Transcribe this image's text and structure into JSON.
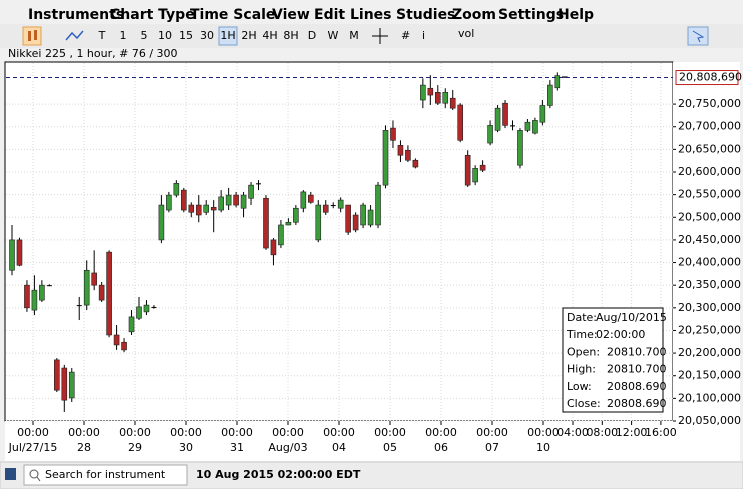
{
  "menu": [
    "Instruments",
    "Chart Type",
    "Time Scale",
    "View",
    "Edit",
    "Lines",
    "Studies",
    "Zoom",
    "Settings",
    "Help"
  ],
  "toolbar": {
    "periods": [
      "T",
      "1",
      "5",
      "10",
      "15",
      "30",
      "1H",
      "2H",
      "4H",
      "8H",
      "D",
      "W",
      "M"
    ],
    "active": "1H",
    "info": "i",
    "vol": "vol"
  },
  "info_line": "Nikkei 225 , 1 hour, # 76 / 300",
  "chart_data": {
    "type": "candlestick",
    "up_color": "#3c9c3c",
    "down_color": "#b02828",
    "ylim": [
      20050,
      20843
    ],
    "yticks": [
      {
        "value": 20050,
        "label": "20,050,000"
      },
      {
        "value": 20100,
        "label": "20,100,000"
      },
      {
        "value": 20150,
        "label": "20,150,000"
      },
      {
        "value": 20200,
        "label": "20,200,000"
      },
      {
        "value": 20250,
        "label": "20,250,000"
      },
      {
        "value": 20300,
        "label": "20,300,000"
      },
      {
        "value": 20350,
        "label": "20,350,000"
      },
      {
        "value": 20400,
        "label": "20,400,000"
      },
      {
        "value": 20450,
        "label": "20,450,000"
      },
      {
        "value": 20500,
        "label": "20,500,000"
      },
      {
        "value": 20550,
        "label": "20,550,000"
      },
      {
        "value": 20600,
        "label": "20,600,000"
      },
      {
        "value": 20650,
        "label": "20,650,000"
      },
      {
        "value": 20700,
        "label": "20,700,000"
      },
      {
        "value": 20750,
        "label": "20,750,000"
      }
    ],
    "xticks": [
      {
        "time": "00:00",
        "date": "Jul/27/15"
      },
      {
        "time": "00:00",
        "date": "28"
      },
      {
        "time": "00:00",
        "date": "29"
      },
      {
        "time": "00:00",
        "date": "30"
      },
      {
        "time": "00:00",
        "date": "31"
      },
      {
        "time": "00:00",
        "date": "Aug/03"
      },
      {
        "time": "00:00",
        "date": "04"
      },
      {
        "time": "00:00",
        "date": "05"
      },
      {
        "time": "00:00",
        "date": "06"
      },
      {
        "time": "00:00",
        "date": "07"
      },
      {
        "time": "00:00",
        "date": "10"
      },
      {
        "time": "04:00"
      },
      {
        "time": "08:00"
      },
      {
        "time": "12:00"
      },
      {
        "time": "16:00"
      }
    ],
    "current_price": {
      "value": 20808.69,
      "label": "20,808,690"
    },
    "open": [
      20383,
      20450,
      20350,
      20295,
      20317,
      20350,
      20185,
      20167,
      20101,
      20306,
      20306,
      20377,
      20350,
      20423,
      20240,
      20224,
      20247,
      20277,
      20291,
      20302,
      20450,
      20516,
      20549,
      20560,
      20527,
      20527,
      20511,
      20522,
      20516,
      20527,
      20549,
      20520,
      20542,
      20575,
      20542,
      20450,
      20439,
      20483,
      20489,
      20520,
      20549,
      20450,
      20527,
      20527,
      20520,
      20527,
      20505,
      20483,
      20483,
      20483,
      20571,
      20697,
      20659,
      20648,
      20626,
      20759,
      20785,
      20776,
      20752,
      20763,
      20748,
      20637,
      20578,
      20615,
      20664,
      20692,
      20752,
      20703,
      20615,
      20692,
      20686,
      20710,
      20747,
      20786,
      20810.7
    ],
    "high": [
      20483,
      20455,
      20361,
      20372,
      20361,
      20352,
      20189,
      20174,
      20167,
      20324,
      20405,
      20427,
      20357,
      20427,
      20262,
      20233,
      20295,
      20324,
      20317,
      20306,
      20549,
      20556,
      20582,
      20565,
      20533,
      20549,
      20538,
      20538,
      20560,
      20565,
      20556,
      20556,
      20578,
      20582,
      20549,
      20454,
      20494,
      20498,
      20527,
      20560,
      20556,
      20538,
      20538,
      20533,
      20544,
      20527,
      20511,
      20532,
      20527,
      20578,
      20703,
      20714,
      20670,
      20659,
      20630,
      20807,
      20814,
      20792,
      20785,
      20781,
      20752,
      20648,
      20615,
      20626,
      20714,
      20748,
      20759,
      20714,
      20697,
      20717,
      20720,
      20759,
      20803,
      20820,
      20810.7
    ],
    "low": [
      20372,
      20392,
      20291,
      20284,
      20313,
      20348,
      20114,
      20070,
      20092,
      20273,
      20295,
      20339,
      20313,
      20235,
      20207,
      20202,
      20240,
      20273,
      20284,
      20298,
      20443,
      20511,
      20544,
      20511,
      20500,
      20489,
      20505,
      20467,
      20511,
      20516,
      20522,
      20500,
      20527,
      20560,
      20428,
      20394,
      20432,
      20483,
      20483,
      20511,
      20530,
      20445,
      20505,
      20520,
      20511,
      20461,
      20467,
      20476,
      20478,
      20476,
      20564,
      20653,
      20622,
      20622,
      20608,
      20741,
      20748,
      20748,
      20741,
      20737,
      20666,
      20567,
      20571,
      20600,
      20659,
      20688,
      20697,
      20692,
      20608,
      20688,
      20683,
      20703,
      20741,
      20780,
      20808.69
    ],
    "close": [
      20450,
      20394,
      20300,
      20339,
      20350,
      20350,
      20118,
      20096,
      20158,
      20306,
      20383,
      20350,
      20317,
      20240,
      20218,
      20207,
      20280,
      20302,
      20306,
      20302,
      20527,
      20549,
      20575,
      20516,
      20511,
      20505,
      20527,
      20516,
      20545,
      20549,
      20527,
      20549,
      20571,
      20575,
      20432,
      20417,
      20483,
      20489,
      20520,
      20556,
      20533,
      20527,
      20511,
      20527,
      20538,
      20467,
      20472,
      20527,
      20516,
      20571,
      20692,
      20670,
      20637,
      20626,
      20611,
      20792,
      20770,
      20752,
      20776,
      20741,
      20670,
      20571,
      20608,
      20604,
      20703,
      20741,
      20703,
      20703,
      20692,
      20710,
      20714,
      20747,
      20792,
      20813,
      20808.69
    ]
  },
  "data_box": [
    [
      "Date:",
      "Aug/10/2015"
    ],
    [
      "Time:",
      "02:00:00"
    ],
    [
      "Open:",
      "20810.700"
    ],
    [
      "High:",
      "20810.700"
    ],
    [
      "Low:",
      "20808.690"
    ],
    [
      "Close:",
      "20808.690"
    ]
  ],
  "status": {
    "search": "Search for instrument",
    "time": "10 Aug 2015 02:00:00 EDT"
  }
}
